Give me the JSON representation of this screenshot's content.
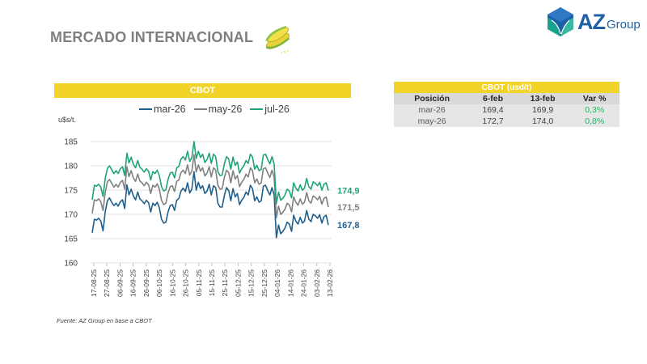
{
  "page": {
    "title": "MERCADO INTERNACIONAL",
    "logo": {
      "mark": "az-cube-logo",
      "text_main": "AZ",
      "text_sub": "Group",
      "color": "#1f5fa8"
    },
    "source": "Fuente: AZ Group en base a CBOT"
  },
  "table": {
    "title": "CBOT (usd/t)",
    "columns": [
      "Posición",
      "6-feb",
      "13-feb",
      "Var %"
    ],
    "rows": [
      {
        "pos": "mar-26",
        "v1": "169,4",
        "v2": "169,9",
        "var": "0,3%"
      },
      {
        "pos": "may-26",
        "v1": "172,7",
        "v2": "174,0",
        "var": "0,8%"
      }
    ],
    "positive_color": "#2db36a",
    "header_color": "#f2d428"
  },
  "chart_data": {
    "type": "line",
    "title": "CBOT",
    "ylabel": "u$s/t.",
    "xlabel": "",
    "ylim": [
      160,
      185
    ],
    "yticks": [
      160,
      165,
      170,
      175,
      180,
      185
    ],
    "ytick_labels": [
      "160",
      "165",
      "170",
      "175",
      "180",
      "185"
    ],
    "grid": true,
    "legend_position": "top",
    "x_tick_labels": [
      "17-08-25",
      "27-08-25",
      "06-09-25",
      "16-09-25",
      "26-09-25",
      "06-10-25",
      "16-10-25",
      "26-10-25",
      "05-11-25",
      "15-11-25",
      "25-11-25",
      "05-12-25",
      "15-12-25",
      "25-12-25",
      "04-01-26",
      "14-01-26",
      "24-01-26",
      "03-02-26",
      "13-02-26"
    ],
    "series": [
      {
        "name": "mar-26",
        "color": "#1f5f8b",
        "last_label": "167,8",
        "values": [
          166.2,
          169.0,
          168.8,
          169.2,
          168.6,
          166.6,
          170.5,
          172.8,
          173.4,
          172.5,
          171.8,
          172.3,
          171.7,
          172.6,
          173.0,
          171.2,
          176.1,
          174.0,
          175.2,
          173.8,
          173.0,
          174.6,
          173.2,
          172.8,
          172.2,
          172.9,
          172.4,
          170.5,
          172.3,
          171.8,
          172.5,
          171.4,
          169.0,
          168.2,
          168.4,
          170.5,
          171.8,
          172.0,
          170.8,
          172.9,
          173.3,
          174.8,
          175.4,
          174.7,
          176.5,
          174.4,
          175.2,
          178.8,
          175.0,
          176.6,
          175.3,
          175.9,
          174.3,
          174.8,
          176.2,
          174.0,
          175.9,
          175.5,
          172.3,
          171.5,
          171.5,
          173.9,
          175.5,
          174.9,
          172.8,
          175.3,
          173.6,
          174.3,
          172.0,
          172.9,
          173.5,
          174.6,
          174.0,
          176.0,
          175.3,
          172.8,
          173.6,
          172.5,
          172.8,
          175.8,
          176.0,
          174.9,
          174.0,
          175.5,
          174.0,
          165.2,
          167.8,
          166.0,
          166.5,
          167.2,
          168.4,
          168.0,
          166.5,
          169.8,
          168.6,
          168.0,
          169.4,
          168.2,
          168.6,
          170.8,
          169.0,
          168.5,
          170.0,
          169.7,
          169.2,
          169.9,
          168.2,
          169.5,
          169.8,
          167.8
        ]
      },
      {
        "name": "may-26",
        "color": "#808080",
        "last_label": "171,5",
        "values": [
          170.2,
          173.0,
          172.8,
          173.2,
          172.6,
          170.8,
          174.5,
          176.7,
          177.2,
          176.4,
          175.6,
          176.2,
          175.6,
          176.6,
          177.0,
          175.2,
          179.8,
          177.8,
          179.0,
          177.5,
          176.8,
          178.3,
          176.9,
          176.5,
          175.9,
          176.6,
          176.1,
          174.3,
          176.0,
          175.6,
          176.3,
          175.2,
          172.9,
          172.0,
          172.3,
          174.4,
          175.7,
          175.9,
          174.7,
          176.8,
          177.1,
          178.6,
          179.1,
          178.4,
          180.2,
          178.1,
          178.9,
          182.3,
          178.7,
          180.2,
          178.9,
          179.6,
          177.9,
          178.5,
          179.8,
          177.7,
          179.6,
          179.1,
          176.0,
          175.2,
          175.3,
          177.6,
          179.1,
          178.6,
          176.5,
          179.0,
          177.3,
          178.0,
          175.7,
          176.6,
          177.2,
          178.3,
          177.7,
          179.6,
          179.0,
          176.5,
          177.3,
          176.2,
          176.5,
          179.4,
          179.6,
          178.5,
          177.6,
          179.1,
          177.6,
          169.3,
          171.7,
          170.0,
          170.4,
          171.1,
          172.3,
          171.9,
          170.5,
          173.6,
          172.5,
          171.9,
          173.2,
          172.1,
          172.5,
          174.5,
          172.8,
          172.3,
          173.8,
          173.5,
          173.0,
          173.7,
          172.1,
          173.3,
          173.6,
          171.5
        ]
      },
      {
        "name": "jul-26",
        "color": "#1fa37a",
        "last_label": "174,9",
        "values": [
          173.0,
          176.0,
          175.8,
          176.2,
          175.6,
          173.7,
          177.4,
          179.5,
          180.0,
          179.2,
          178.4,
          179.0,
          178.4,
          179.4,
          179.8,
          178.0,
          182.6,
          180.6,
          181.8,
          180.3,
          179.6,
          181.1,
          179.7,
          179.3,
          178.7,
          179.4,
          178.9,
          177.1,
          178.8,
          178.4,
          179.1,
          178.0,
          175.7,
          174.8,
          175.1,
          177.2,
          178.5,
          178.7,
          177.5,
          179.6,
          179.9,
          181.4,
          181.9,
          181.2,
          183.0,
          180.9,
          181.7,
          185.0,
          181.5,
          183.0,
          181.7,
          182.4,
          180.7,
          181.3,
          182.6,
          180.5,
          182.4,
          181.9,
          178.8,
          178.0,
          178.1,
          180.4,
          181.9,
          181.4,
          179.3,
          181.8,
          180.1,
          180.8,
          178.5,
          179.4,
          180.0,
          181.1,
          180.5,
          182.4,
          181.8,
          179.3,
          180.1,
          179.0,
          179.3,
          182.2,
          182.4,
          181.3,
          180.4,
          181.9,
          180.4,
          172.2,
          174.6,
          172.9,
          173.3,
          174.0,
          175.2,
          174.8,
          173.4,
          176.5,
          175.4,
          174.8,
          176.1,
          175.0,
          175.4,
          177.4,
          175.7,
          175.2,
          176.7,
          176.4,
          175.9,
          176.6,
          175.0,
          176.2,
          176.5,
          174.9
        ]
      }
    ]
  }
}
